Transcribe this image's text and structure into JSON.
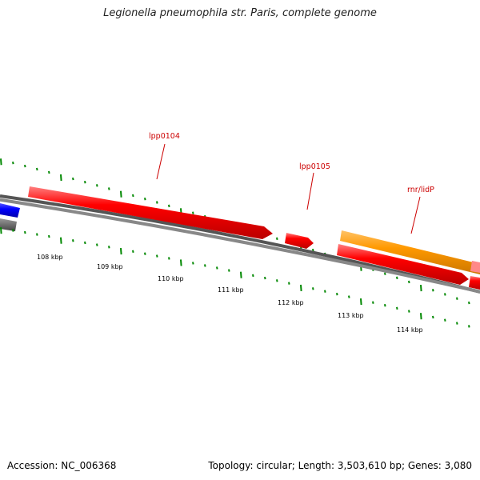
{
  "header": {
    "title": "Legionella pneumophila str. Paris, complete genome"
  },
  "footer": {
    "accession": "Accession: NC_006368",
    "summary": "Topology: circular; Length: 3,503,610 bp; Genes: 3,080"
  },
  "genome_map": {
    "scale_labels": [
      "108 kbp",
      "109 kbp",
      "110 kbp",
      "111 kbp",
      "112 kbp",
      "113 kbp",
      "114 kbp"
    ],
    "gene_labels": [
      "lpp0104",
      "lpp0105",
      "rnr/lidP"
    ],
    "colors": {
      "label": "#cc0000",
      "cds": "#ff0000",
      "orange_feature": "#ff9900",
      "blue_feature": "#0000ff",
      "pink_feature": "#ff8888",
      "gray_feature": "#666666",
      "backbone": "#888888",
      "gc_ticks": "#008800"
    }
  }
}
